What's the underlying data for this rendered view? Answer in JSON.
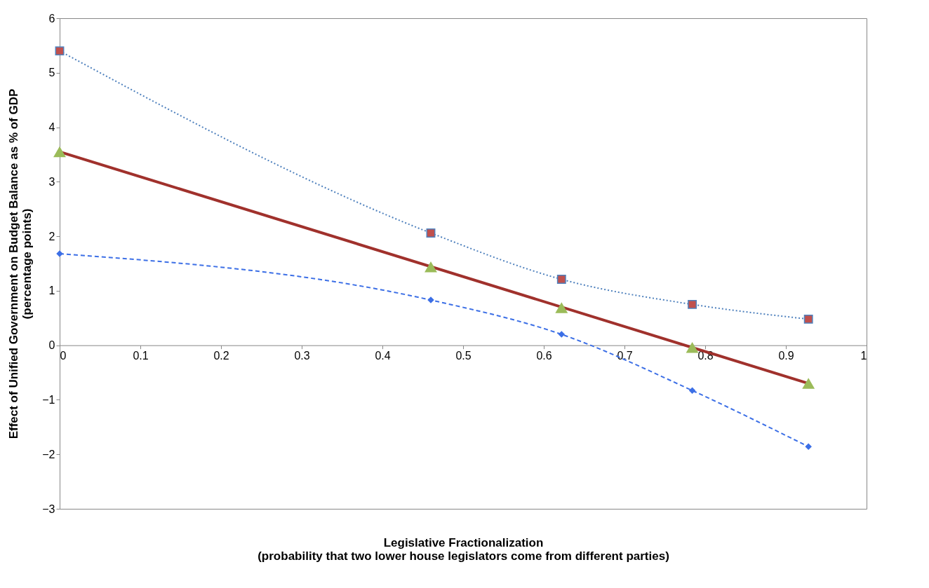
{
  "chart_data": {
    "type": "line",
    "xlabel": "Legislative Fractionalization\n(probability that two lower house legislators come from different parties)",
    "ylabel": "Effect of Unified Government on Budget Balance as % of GDP\n(percentage points)",
    "x": [
      0,
      0.46,
      0.622,
      0.784,
      0.928
    ],
    "series": [
      {
        "type": "line",
        "color": "#4f81bd",
        "marker": "none",
        "line_style": "dotted",
        "values": [
          5.4,
          2.06,
          1.21,
          0.75,
          0.48
        ]
      },
      {
        "type": "scatter",
        "color": "#c0504d",
        "marker": "square",
        "values": [
          5.4,
          2.06,
          1.21,
          0.75,
          0.48
        ]
      },
      {
        "type": "line",
        "color": "#3c6fe6",
        "marker": "diamond",
        "line_style": "dashed",
        "values": [
          1.68,
          0.83,
          0.2,
          -0.83,
          -1.86
        ]
      },
      {
        "type": "line",
        "color": "#a0312c",
        "marker": "none",
        "line_style": "solid",
        "x": [
          0,
          0.928
        ],
        "values": [
          3.55,
          -0.7
        ]
      },
      {
        "type": "scatter",
        "color": "#9bbb59",
        "marker": "triangle",
        "values": [
          3.55,
          1.44,
          0.69,
          -0.04,
          -0.7
        ]
      }
    ],
    "xlim": [
      0,
      1
    ],
    "xticks": [
      0,
      0.1,
      0.2,
      0.3,
      0.4,
      0.5,
      0.6,
      0.7,
      0.8,
      0.9,
      1
    ],
    "ylim": [
      -3,
      6
    ],
    "yticks": [
      -3,
      -2,
      -1,
      0,
      1,
      2,
      3,
      4,
      5,
      6
    ],
    "grid": false
  }
}
